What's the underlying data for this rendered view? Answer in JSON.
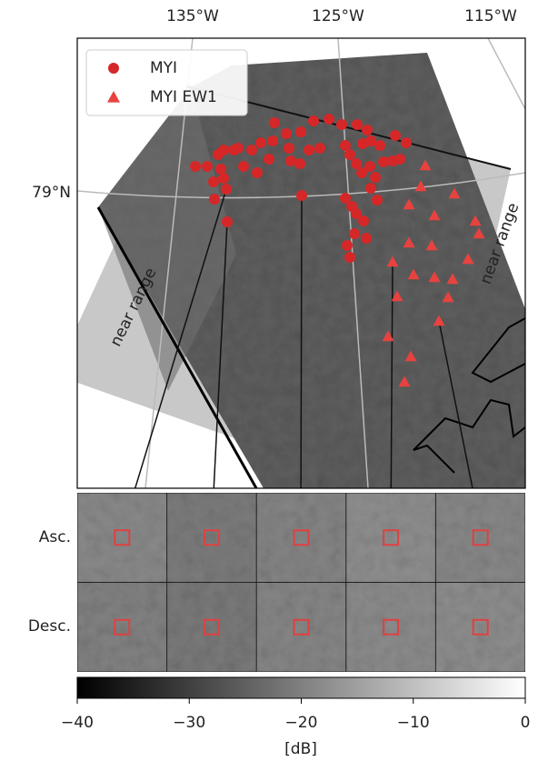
{
  "map": {
    "longitude_labels": [
      "135°W",
      "125°W",
      "115°W"
    ],
    "latitude_label": "79°N",
    "legend": [
      {
        "label": "MYI",
        "marker": "circle",
        "color": "#d62728"
      },
      {
        "label": "MYI EW1",
        "marker": "triangle",
        "color": "#e8423f"
      }
    ],
    "swath_labels": [
      "near range",
      "near range"
    ]
  },
  "patches": {
    "rows": [
      "Asc.",
      "Desc."
    ]
  },
  "colorbar": {
    "lim": [
      -40,
      0
    ],
    "ticks": [
      {
        "value": -40,
        "label": "−40"
      },
      {
        "value": -30,
        "label": "−30"
      },
      {
        "value": -20,
        "label": "−20"
      },
      {
        "value": -10,
        "label": "−10"
      },
      0
    ],
    "label": "[dB]"
  }
}
